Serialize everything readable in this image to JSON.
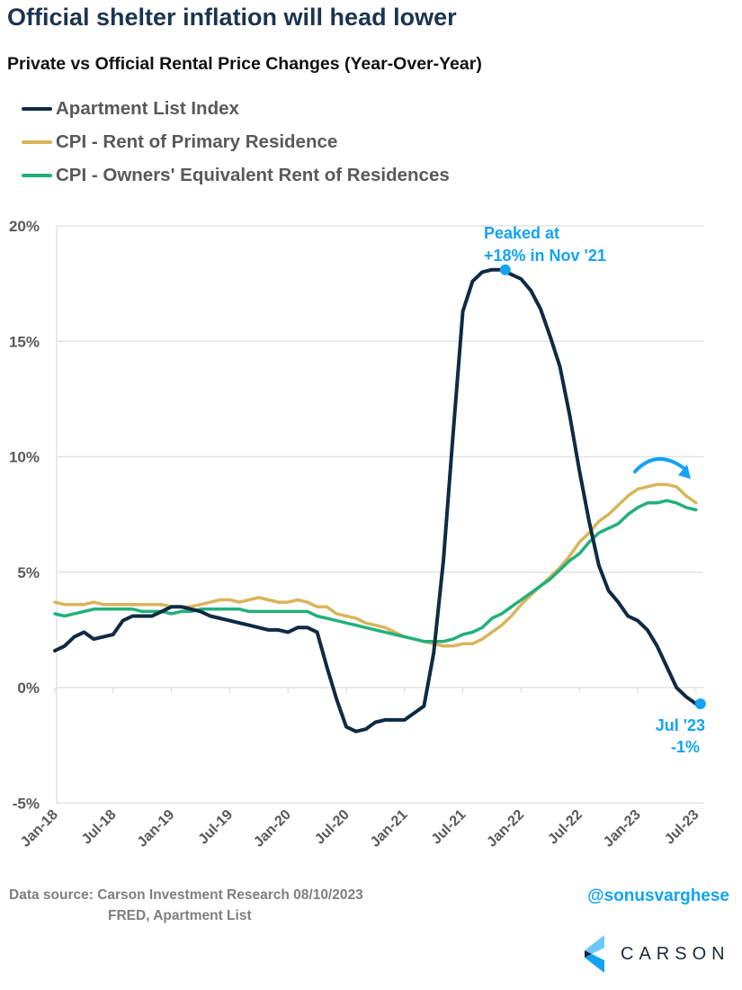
{
  "title": "Official shelter inflation will head lower",
  "subtitle": "Private vs Official Rental Price Changes (Year-Over-Year)",
  "footer": {
    "source_line1": "Data source: Carson Investment Research   08/10/2023",
    "source_line2": "FRED, Apartment List",
    "handle": "@sonusvarghese",
    "logo": "CARSON"
  },
  "colors": {
    "apartment": "#0f2a44",
    "rent": "#d9b45a",
    "oer": "#22b07a",
    "annotation": "#12a3f5",
    "grid": "#e3e3e3",
    "axis_text": "#595959"
  },
  "chart_data": {
    "type": "line",
    "x_start": "Jan-18",
    "x_end": "Jul-23",
    "frequency": "monthly",
    "x_tick_labels": [
      "Jan-18",
      "Jul-18",
      "Jan-19",
      "Jul-19",
      "Jan-20",
      "Jul-20",
      "Jan-21",
      "Jul-21",
      "Jan-22",
      "Jul-22",
      "Jan-23",
      "Jul-23"
    ],
    "y_tick_labels": [
      "20%",
      "15%",
      "10%",
      "5%",
      "0%",
      "-5%"
    ],
    "y_ticks": [
      20,
      15,
      10,
      5,
      0,
      -5
    ],
    "ylim": [
      -5,
      20
    ],
    "grid": "horizontal",
    "legend_placement": "top-left",
    "series": [
      {
        "name": "Apartment List Index",
        "color": "#0f2a44",
        "values": [
          1.6,
          1.8,
          2.2,
          2.4,
          2.1,
          2.2,
          2.3,
          2.9,
          3.1,
          3.1,
          3.1,
          3.3,
          3.5,
          3.5,
          3.4,
          3.3,
          3.1,
          3.0,
          2.9,
          2.8,
          2.7,
          2.6,
          2.5,
          2.5,
          2.4,
          2.6,
          2.6,
          2.4,
          0.9,
          -0.5,
          -1.7,
          -1.9,
          -1.8,
          -1.5,
          -1.4,
          -1.4,
          -1.4,
          -1.1,
          -0.8,
          1.5,
          5.5,
          11.0,
          16.3,
          17.6,
          18.0,
          18.1,
          18.1,
          17.9,
          17.7,
          17.2,
          16.4,
          15.2,
          13.9,
          11.8,
          9.4,
          7.2,
          5.3,
          4.2,
          3.7,
          3.1,
          2.9,
          2.5,
          1.8,
          0.9,
          0.0,
          -0.4,
          -0.7
        ]
      },
      {
        "name": "CPI - Rent of Primary Residence",
        "color": "#d9b45a",
        "values": [
          3.7,
          3.6,
          3.6,
          3.6,
          3.7,
          3.6,
          3.6,
          3.6,
          3.6,
          3.6,
          3.6,
          3.6,
          3.5,
          3.5,
          3.5,
          3.6,
          3.7,
          3.8,
          3.8,
          3.7,
          3.8,
          3.9,
          3.8,
          3.7,
          3.7,
          3.8,
          3.7,
          3.5,
          3.5,
          3.2,
          3.1,
          3.0,
          2.8,
          2.7,
          2.6,
          2.4,
          2.2,
          2.1,
          2.0,
          1.9,
          1.8,
          1.8,
          1.9,
          1.9,
          2.1,
          2.4,
          2.7,
          3.1,
          3.6,
          4.0,
          4.4,
          4.8,
          5.2,
          5.7,
          6.3,
          6.7,
          7.2,
          7.5,
          7.9,
          8.3,
          8.6,
          8.7,
          8.8,
          8.8,
          8.7,
          8.3,
          8.0
        ]
      },
      {
        "name": "CPI - Owners' Equivalent Rent of Residences",
        "color": "#22b07a",
        "values": [
          3.2,
          3.1,
          3.2,
          3.3,
          3.4,
          3.4,
          3.4,
          3.4,
          3.4,
          3.3,
          3.3,
          3.3,
          3.2,
          3.3,
          3.3,
          3.4,
          3.4,
          3.4,
          3.4,
          3.4,
          3.3,
          3.3,
          3.3,
          3.3,
          3.3,
          3.3,
          3.3,
          3.1,
          3.0,
          2.9,
          2.8,
          2.7,
          2.6,
          2.5,
          2.4,
          2.3,
          2.2,
          2.1,
          2.0,
          2.0,
          2.0,
          2.1,
          2.3,
          2.4,
          2.6,
          3.0,
          3.2,
          3.5,
          3.8,
          4.1,
          4.4,
          4.7,
          5.1,
          5.5,
          5.8,
          6.3,
          6.7,
          6.9,
          7.1,
          7.5,
          7.8,
          8.0,
          8.0,
          8.1,
          8.0,
          7.8,
          7.7
        ]
      }
    ],
    "annotations": [
      {
        "lines": [
          "Peaked at",
          "+18% in Nov '21"
        ],
        "series": 0,
        "index": 46
      },
      {
        "lines": [
          "Jul '23",
          "-1%"
        ],
        "series": 0,
        "index": 66
      }
    ]
  }
}
